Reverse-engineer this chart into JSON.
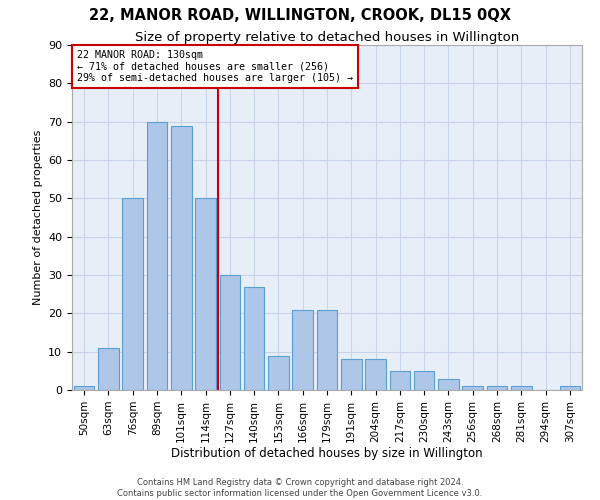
{
  "title": "22, MANOR ROAD, WILLINGTON, CROOK, DL15 0QX",
  "subtitle": "Size of property relative to detached houses in Willington",
  "xlabel": "Distribution of detached houses by size in Willington",
  "ylabel": "Number of detached properties",
  "bar_labels": [
    "50sqm",
    "63sqm",
    "76sqm",
    "89sqm",
    "101sqm",
    "114sqm",
    "127sqm",
    "140sqm",
    "153sqm",
    "166sqm",
    "179sqm",
    "191sqm",
    "204sqm",
    "217sqm",
    "230sqm",
    "243sqm",
    "256sqm",
    "268sqm",
    "281sqm",
    "294sqm",
    "307sqm"
  ],
  "bar_values": [
    1,
    11,
    50,
    70,
    69,
    50,
    30,
    27,
    9,
    21,
    21,
    8,
    8,
    5,
    5,
    3,
    1,
    1,
    1,
    0,
    1
  ],
  "bar_color": "#aec6e8",
  "bar_edge_color": "#5a9fd4",
  "reference_label": "22 MANOR ROAD: 130sqm",
  "annotation_line1": "← 71% of detached houses are smaller (256)",
  "annotation_line2": "29% of semi-detached houses are larger (105) →",
  "annotation_box_color": "#ffffff",
  "annotation_border_color": "#cc0000",
  "vline_color": "#cc0000",
  "ylim": [
    0,
    90
  ],
  "yticks": [
    0,
    10,
    20,
    30,
    40,
    50,
    60,
    70,
    80,
    90
  ],
  "grid_color": "#c8d4e8",
  "bg_color": "#e8eef8",
  "footer1": "Contains HM Land Registry data © Crown copyright and database right 2024.",
  "footer2": "Contains public sector information licensed under the Open Government Licence v3.0."
}
